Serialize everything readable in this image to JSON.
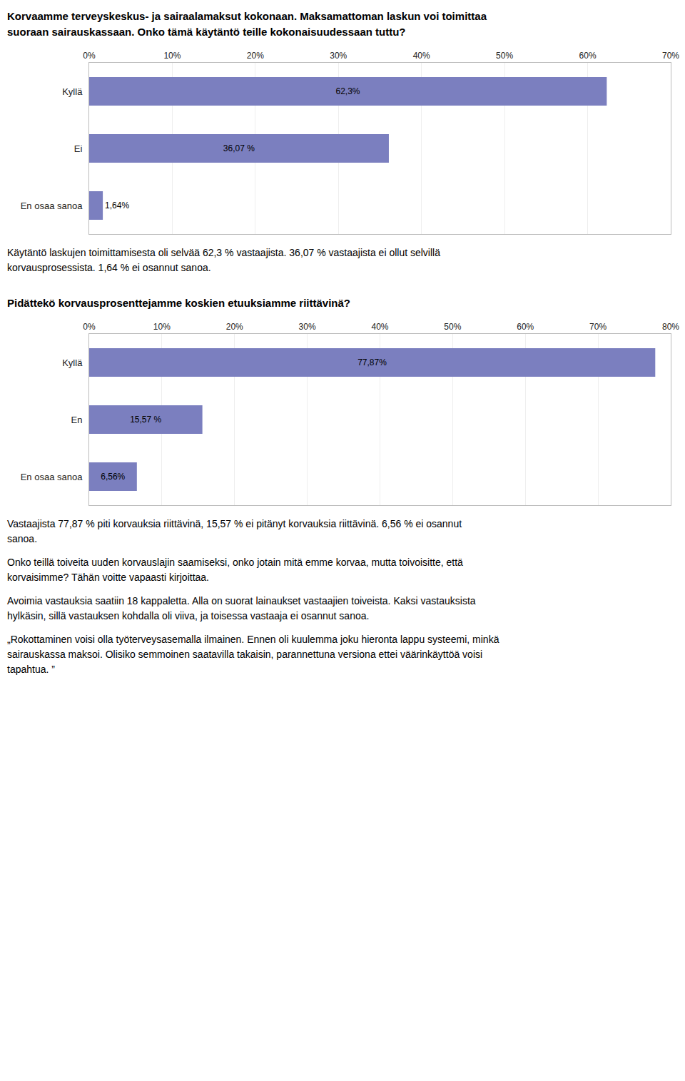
{
  "chart_data": [
    {
      "type": "bar",
      "orientation": "horizontal",
      "title": "Korvaamme terveyskeskus- ja sairaalamaksut kokonaan. Maksamattoman laskun voi toimittaa suoraan sairauskassaan. Onko tämä käytäntö teille kokonaisuudessaan tuttu?",
      "categories": [
        "Kyllä",
        "Ei",
        "En osaa sanoa"
      ],
      "values": [
        62.3,
        36.07,
        1.64
      ],
      "value_labels": [
        "62,3%",
        "36,07 %",
        "1,64%"
      ],
      "data_labels": true,
      "color": "#7b7fbf",
      "xlim": [
        0,
        70
      ],
      "xticks": [
        {
          "value": 0,
          "label": "0%"
        },
        {
          "value": 10,
          "label": "10%"
        },
        {
          "value": 20,
          "label": "20%"
        },
        {
          "value": 30,
          "label": "30%"
        },
        {
          "value": 40,
          "label": "40%"
        },
        {
          "value": 50,
          "label": "50%"
        },
        {
          "value": 60,
          "label": "60%"
        },
        {
          "value": 70,
          "label": "70%"
        }
      ],
      "grid": true,
      "annotations": [
        "Käytäntö laskujen toimittamisesta oli selvää 62,3 % vastaajista. 36,07 % vastaajista ei ollut selvillä korvausprosessista. 1,64 % ei osannut sanoa."
      ]
    },
    {
      "type": "bar",
      "orientation": "horizontal",
      "title": "Pidättekö korvausprosenttejamme koskien etuuksiamme riittävinä?",
      "categories": [
        "Kyllä",
        "En",
        "En osaa sanoa"
      ],
      "values": [
        77.87,
        15.57,
        6.56
      ],
      "value_labels": [
        "77,87%",
        "15,57 %",
        "6,56%"
      ],
      "data_labels": true,
      "color": "#7b7fbf",
      "xlim": [
        0,
        80
      ],
      "xticks": [
        {
          "value": 0,
          "label": "0%"
        },
        {
          "value": 10,
          "label": "10%"
        },
        {
          "value": 20,
          "label": "20%"
        },
        {
          "value": 30,
          "label": "30%"
        },
        {
          "value": 40,
          "label": "40%"
        },
        {
          "value": 50,
          "label": "50%"
        },
        {
          "value": 60,
          "label": "60%"
        },
        {
          "value": 70,
          "label": "70%"
        },
        {
          "value": 80,
          "label": "80%"
        }
      ],
      "grid": true,
      "annotations": [
        "Vastaajista 77,87 % piti korvauksia riittävinä, 15,57 % ei pitänyt korvauksia riittävinä. 6,56 % ei osannut sanoa.",
        "Onko teillä toiveita uuden korvauslajin saamiseksi, onko jotain mitä emme korvaa, mutta toivoisitte, että korvaisimme? Tähän voitte vapaasti kirjoittaa.",
        "Avoimia vastauksia saatiin 18 kappaletta. Alla on suorat lainaukset vastaajien toiveista. Kaksi vastauksista hylkäsin, sillä vastauksen kohdalla oli viiva, ja toisessa vastaaja ei osannut sanoa.",
        "„Rokottaminen voisi olla työterveysasemalla ilmainen. Ennen oli kuulemma joku hieronta lappu systeemi, minkä sairauskassa maksoi. Olisiko semmoinen saatavilla takaisin, parannettuna versiona ettei väärinkäyttöä voisi tapahtua. ”"
      ]
    }
  ]
}
